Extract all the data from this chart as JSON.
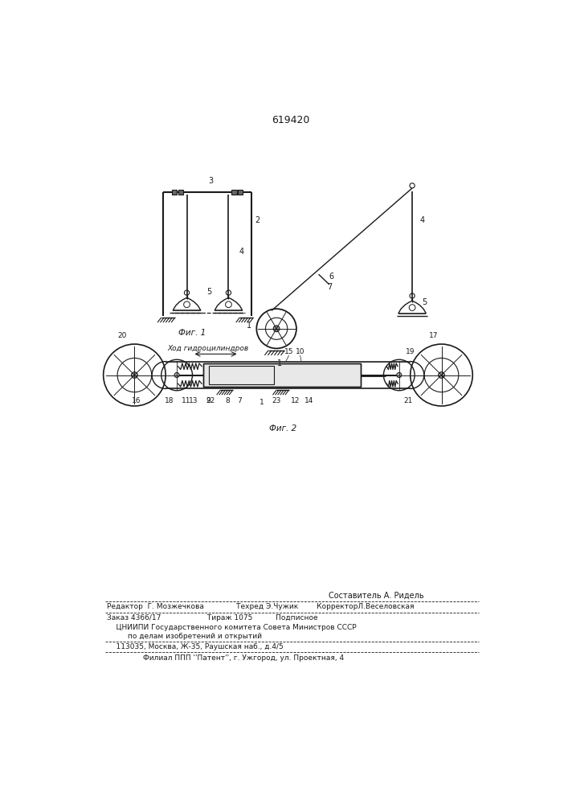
{
  "patent_number": "619420",
  "fig1_label": "Фиг. 1",
  "fig2_label": "Фиг. 2",
  "hydro_label": "Ход гидроцилиндров",
  "bottom_text_line1": "Составитель А. Ридель",
  "bottom_text_line2": "Редактор  Г. Мозжечкова              Техред Э.Чужик        КорректорЛ.Веселовская",
  "bottom_text_line3": "Заказ 4366/17                    Тираж 1075          Подписное",
  "bottom_text_line4": "    ЦНИИПИ Государственного комитета Совета Министров СССР",
  "bottom_text_line5": "         по делам изобретений и открытий",
  "bottom_text_line6": "    113035, Москва, Ж-35, Раушская наб., д.4/5",
  "bottom_text_line7": "Филиал ППП ''Патент'', г. Ужгород, ул. Проектная, 4",
  "bg_color": "#ffffff",
  "line_color": "#1a1a1a",
  "text_color": "#1a1a1a"
}
